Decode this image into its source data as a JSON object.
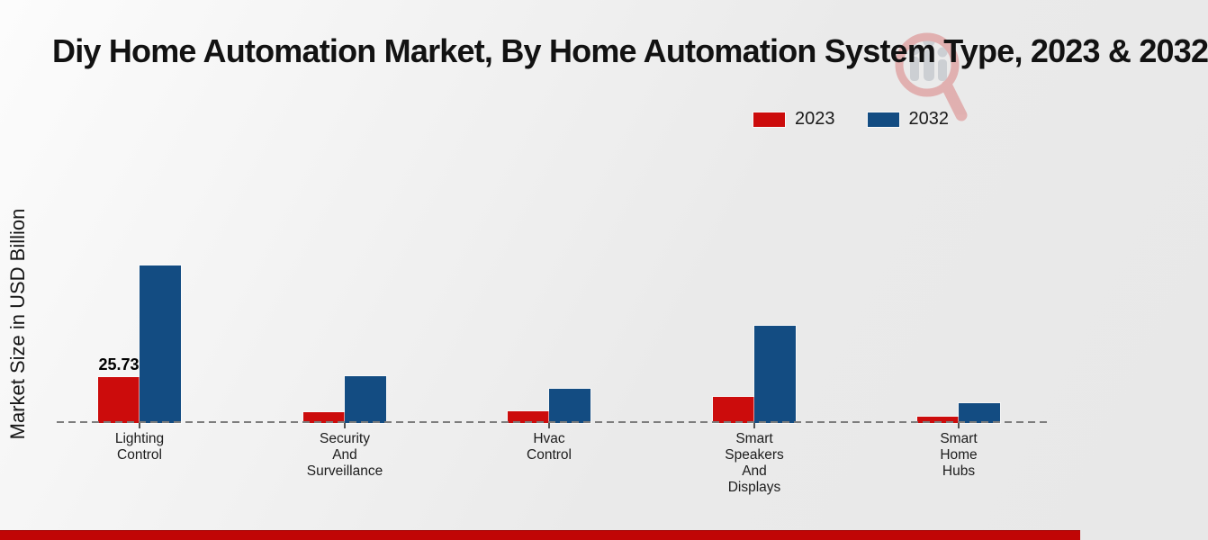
{
  "title": "Diy Home Automation Market, By Home Automation System Type, 2023 & 2032",
  "ylabel": "Market Size in USD Billion",
  "colors": {
    "series_2023": "#cc0c0c",
    "series_2032": "#134c82",
    "background": "#ebebeb",
    "baseline": "#7d7d7d",
    "footer_bar": "#c00505"
  },
  "icons": {
    "brand_logo": "magnifier-with-bar-chart-watermark"
  },
  "chart_data": {
    "type": "bar",
    "title": "Diy Home Automation Market, By Home Automation System Type, 2023 & 2032",
    "ylabel": "Market Size in USD Billion",
    "xlabel": "",
    "categories": [
      "Lighting Control",
      "Security And Surveillance",
      "Hvac Control",
      "Smart Speakers And Displays",
      "Smart Home Hubs"
    ],
    "series": [
      {
        "name": "2023",
        "color": "#cc0c0c",
        "values": [
          25.73,
          6.1,
          6.5,
          14.6,
          3.5
        ]
      },
      {
        "name": "2032",
        "color": "#134c82",
        "values": [
          88.3,
          26.2,
          19.2,
          54.5,
          11.1
        ]
      }
    ],
    "annotations": [
      {
        "series_index": 0,
        "category_index": 0,
        "text": "25.73"
      }
    ],
    "ylim": [
      0,
      95
    ],
    "legend_position": "top-right",
    "baseline_style": "dashed",
    "gridlines": false,
    "y_axis_ticks_visible": false
  }
}
